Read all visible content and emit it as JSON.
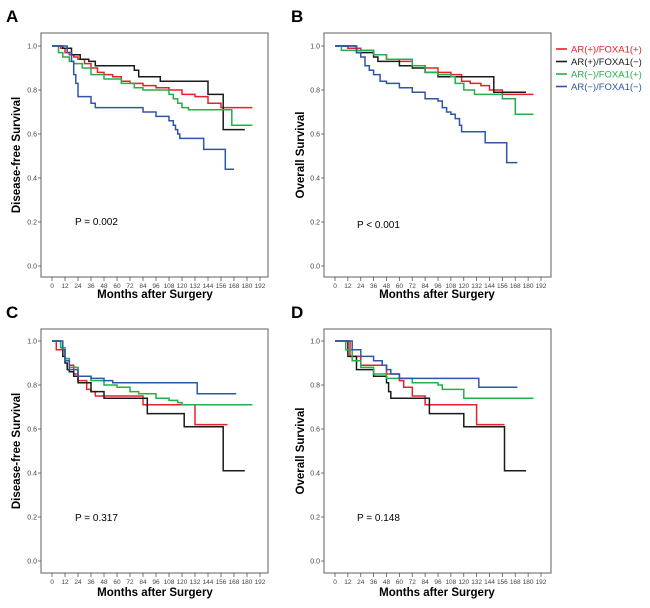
{
  "chart_data": [
    {
      "panel": "A",
      "type": "line",
      "title": "",
      "xlabel": "Months after Surgery",
      "ylabel": "Disease-free Survival",
      "xlim": [
        0,
        192
      ],
      "ylim": [
        0,
        1.0
      ],
      "xticks": [
        0,
        12,
        24,
        36,
        48,
        60,
        72,
        84,
        96,
        108,
        120,
        132,
        144,
        156,
        168,
        180,
        192
      ],
      "yticks": [
        "0.0",
        "0.2",
        "0.4",
        "0.6",
        "0.8",
        "1.0"
      ],
      "annotation": "P = 0.002",
      "grid": false,
      "series": [
        {
          "name": "AR(+)/FOXA1(+)",
          "color": "#e8202a",
          "x": [
            3,
            8,
            12,
            16,
            20,
            24,
            30,
            36,
            42,
            48,
            56,
            64,
            72,
            84,
            96,
            108,
            120,
            132,
            144,
            156,
            168,
            185
          ],
          "y": [
            1.0,
            0.99,
            0.97,
            0.96,
            0.95,
            0.94,
            0.92,
            0.9,
            0.88,
            0.87,
            0.86,
            0.84,
            0.83,
            0.82,
            0.81,
            0.8,
            0.78,
            0.77,
            0.74,
            0.72,
            0.72,
            0.72
          ]
        },
        {
          "name": "AR(+)/FOXA1(−)",
          "color": "#1a1a1a",
          "x": [
            3,
            10,
            18,
            26,
            34,
            40,
            72,
            76,
            80,
            96,
            100,
            142,
            144,
            156,
            158,
            178
          ],
          "y": [
            1.0,
            0.99,
            0.96,
            0.94,
            0.93,
            0.91,
            0.91,
            0.89,
            0.86,
            0.86,
            0.84,
            0.84,
            0.78,
            0.78,
            0.62,
            0.62
          ]
        },
        {
          "name": "AR(−)/FOXA1(+)",
          "color": "#22b04a",
          "x": [
            5,
            6,
            10,
            16,
            20,
            28,
            36,
            48,
            64,
            76,
            84,
            100,
            108,
            112,
            116,
            120,
            126,
            132,
            148,
            160,
            166,
            185
          ],
          "y": [
            1.0,
            0.97,
            0.95,
            0.93,
            0.92,
            0.9,
            0.87,
            0.85,
            0.83,
            0.81,
            0.8,
            0.8,
            0.78,
            0.76,
            0.74,
            0.72,
            0.71,
            0.71,
            0.71,
            0.71,
            0.64,
            0.64
          ]
        },
        {
          "name": "AR(−)/FOXA1(−)",
          "color": "#2e56a8",
          "x": [
            12,
            14,
            18,
            20,
            22,
            24,
            28,
            36,
            40,
            44,
            84,
            96,
            108,
            112,
            114,
            116,
            118,
            140,
            156,
            160,
            168
          ],
          "y": [
            1.0,
            0.97,
            0.93,
            0.87,
            0.83,
            0.77,
            0.77,
            0.74,
            0.72,
            0.72,
            0.7,
            0.68,
            0.66,
            0.64,
            0.62,
            0.6,
            0.58,
            0.53,
            0.53,
            0.44,
            0.44
          ]
        }
      ]
    },
    {
      "panel": "B",
      "type": "line",
      "title": "",
      "xlabel": "Months after Surgery",
      "ylabel": "Overall Survival",
      "xlim": [
        0,
        192
      ],
      "ylim": [
        0,
        1.0
      ],
      "xticks": [
        0,
        12,
        24,
        36,
        48,
        60,
        72,
        84,
        96,
        108,
        120,
        132,
        144,
        156,
        168,
        180,
        192
      ],
      "yticks": [
        "0.0",
        "0.2",
        "0.4",
        "0.6",
        "0.8",
        "1.0"
      ],
      "annotation": "P < 0.001",
      "grid": false,
      "series": [
        {
          "name": "AR(+)/FOXA1(+)",
          "color": "#e8202a",
          "x": [
            3,
            12,
            24,
            36,
            48,
            60,
            72,
            84,
            96,
            108,
            118,
            126,
            136,
            144,
            156,
            170,
            185
          ],
          "y": [
            1.0,
            0.99,
            0.98,
            0.96,
            0.94,
            0.93,
            0.91,
            0.9,
            0.88,
            0.87,
            0.84,
            0.83,
            0.82,
            0.8,
            0.78,
            0.78,
            0.78
          ]
        },
        {
          "name": "AR(+)/FOXA1(−)",
          "color": "#1a1a1a",
          "x": [
            3,
            20,
            36,
            40,
            60,
            72,
            84,
            96,
            108,
            144,
            148,
            178
          ],
          "y": [
            1.0,
            0.97,
            0.95,
            0.93,
            0.91,
            0.9,
            0.88,
            0.86,
            0.86,
            0.86,
            0.79,
            0.79
          ]
        },
        {
          "name": "AR(−)/FOXA1(+)",
          "color": "#22b04a",
          "x": [
            5,
            6,
            36,
            48,
            72,
            84,
            96,
            108,
            112,
            120,
            130,
            156,
            168,
            185
          ],
          "y": [
            1.0,
            0.98,
            0.96,
            0.94,
            0.91,
            0.88,
            0.87,
            0.86,
            0.83,
            0.8,
            0.78,
            0.76,
            0.69,
            0.69
          ]
        },
        {
          "name": "AR(−)/FOXA1(−)",
          "color": "#2e56a8",
          "x": [
            12,
            20,
            24,
            28,
            32,
            36,
            42,
            48,
            60,
            72,
            84,
            96,
            100,
            104,
            108,
            112,
            116,
            118,
            140,
            160,
            170
          ],
          "y": [
            1.0,
            0.97,
            0.95,
            0.91,
            0.89,
            0.87,
            0.84,
            0.83,
            0.81,
            0.79,
            0.76,
            0.75,
            0.72,
            0.7,
            0.69,
            0.67,
            0.64,
            0.61,
            0.56,
            0.47,
            0.47
          ]
        }
      ]
    },
    {
      "panel": "C",
      "type": "line",
      "title": "",
      "xlabel": "Months after Surgery",
      "ylabel": "Disease-free Survival",
      "xlim": [
        0,
        192
      ],
      "ylim": [
        0,
        1.0
      ],
      "xticks": [
        0,
        12,
        24,
        36,
        48,
        60,
        72,
        84,
        96,
        108,
        120,
        132,
        144,
        156,
        168,
        180,
        192
      ],
      "yticks": [
        "0.0",
        "0.2",
        "0.4",
        "0.6",
        "0.8",
        "1.0"
      ],
      "annotation": "P = 0.317",
      "grid": false,
      "series": [
        {
          "name": "AR(+)/FOXA1(+)",
          "color": "#e8202a",
          "x": [
            1,
            4,
            8,
            12,
            16,
            20,
            24,
            32,
            36,
            40,
            48,
            84,
            86,
            132,
            134,
            162
          ],
          "y": [
            1.0,
            0.96,
            0.96,
            0.92,
            0.89,
            0.85,
            0.82,
            0.78,
            0.77,
            0.75,
            0.75,
            0.71,
            0.71,
            0.62,
            0.62,
            0.62
          ]
        },
        {
          "name": "AR(+)/FOXA1(−)",
          "color": "#1a1a1a",
          "x": [
            4,
            8,
            10,
            12,
            14,
            16,
            20,
            24,
            36,
            48,
            84,
            88,
            120,
            122,
            156,
            158,
            178
          ],
          "y": [
            1.0,
            0.97,
            0.93,
            0.9,
            0.87,
            0.86,
            0.84,
            0.81,
            0.77,
            0.74,
            0.74,
            0.67,
            0.67,
            0.61,
            0.61,
            0.41,
            0.41
          ]
        },
        {
          "name": "AR(−)/FOXA1(+)",
          "color": "#22b04a",
          "x": [
            5,
            8,
            12,
            16,
            24,
            36,
            48,
            60,
            72,
            80,
            96,
            108,
            116,
            120,
            140,
            185
          ],
          "y": [
            1.0,
            0.97,
            0.92,
            0.88,
            0.84,
            0.82,
            0.8,
            0.79,
            0.77,
            0.76,
            0.74,
            0.73,
            0.72,
            0.71,
            0.71,
            0.71
          ]
        },
        {
          "name": "AR(−)/FOXA1(−)",
          "color": "#2e56a8",
          "x": [
            6,
            10,
            12,
            16,
            24,
            36,
            48,
            56,
            132,
            134,
            170
          ],
          "y": [
            1.0,
            0.96,
            0.91,
            0.87,
            0.84,
            0.83,
            0.82,
            0.81,
            0.81,
            0.76,
            0.76
          ]
        }
      ]
    },
    {
      "panel": "D",
      "type": "line",
      "title": "",
      "xlabel": "Months after Surgery",
      "ylabel": "Overall Survival",
      "xlim": [
        0,
        192
      ],
      "ylim": [
        0,
        1.0
      ],
      "xticks": [
        0,
        12,
        24,
        36,
        48,
        60,
        72,
        84,
        96,
        108,
        120,
        132,
        144,
        156,
        168,
        180,
        192
      ],
      "yticks": [
        "0.0",
        "0.2",
        "0.4",
        "0.6",
        "0.8",
        "1.0"
      ],
      "annotation": "P = 0.148",
      "grid": false,
      "series": [
        {
          "name": "AR(+)/FOXA1(+)",
          "color": "#e8202a",
          "x": [
            3,
            14,
            24,
            36,
            48,
            60,
            64,
            72,
            84,
            130,
            132,
            158
          ],
          "y": [
            1.0,
            0.93,
            0.89,
            0.89,
            0.85,
            0.82,
            0.79,
            0.75,
            0.71,
            0.71,
            0.62,
            0.62
          ]
        },
        {
          "name": "AR(+)/FOXA1(−)",
          "color": "#1a1a1a",
          "x": [
            3,
            12,
            20,
            36,
            48,
            50,
            52,
            88,
            120,
            156,
            158,
            178
          ],
          "y": [
            1.0,
            0.93,
            0.87,
            0.84,
            0.81,
            0.77,
            0.74,
            0.67,
            0.61,
            0.61,
            0.41,
            0.41
          ]
        },
        {
          "name": "AR(−)/FOXA1(+)",
          "color": "#22b04a",
          "x": [
            6,
            10,
            16,
            24,
            36,
            48,
            72,
            96,
            100,
            120,
            185
          ],
          "y": [
            1.0,
            0.96,
            0.91,
            0.88,
            0.85,
            0.83,
            0.81,
            0.8,
            0.78,
            0.74,
            0.74
          ]
        },
        {
          "name": "AR(−)/FOXA1(−)",
          "color": "#2e56a8",
          "x": [
            12,
            16,
            24,
            36,
            44,
            48,
            52,
            60,
            132,
            134,
            170
          ],
          "y": [
            1.0,
            0.96,
            0.93,
            0.91,
            0.89,
            0.87,
            0.85,
            0.83,
            0.83,
            0.79,
            0.79
          ]
        }
      ]
    }
  ],
  "panels": {
    "A": {
      "letter": "A",
      "ylabel": "Disease-free Survival",
      "xlabel": "Months after Surgery",
      "pvalue": "P = 0.002"
    },
    "B": {
      "letter": "B",
      "ylabel": "Overall Survival",
      "xlabel": "Months after Surgery",
      "pvalue": "P < 0.001"
    },
    "C": {
      "letter": "C",
      "ylabel": "Disease-free Survival",
      "xlabel": "Months after Surgery",
      "pvalue": "P = 0.317"
    },
    "D": {
      "letter": "D",
      "ylabel": "Overall Survival",
      "xlabel": "Months after Surgery",
      "pvalue": "P = 0.148"
    }
  },
  "legend": {
    "position": "right-top",
    "items": [
      {
        "label": "AR(+)/FOXA1(+)",
        "color": "#e8202a"
      },
      {
        "label": "AR(+)/FOXA1(−)",
        "color": "#1a1a1a"
      },
      {
        "label": "AR(−)/FOXA1(+)",
        "color": "#22b04a"
      },
      {
        "label": "AR(−)/FOXA1(−)",
        "color": "#2e56a8"
      }
    ]
  }
}
